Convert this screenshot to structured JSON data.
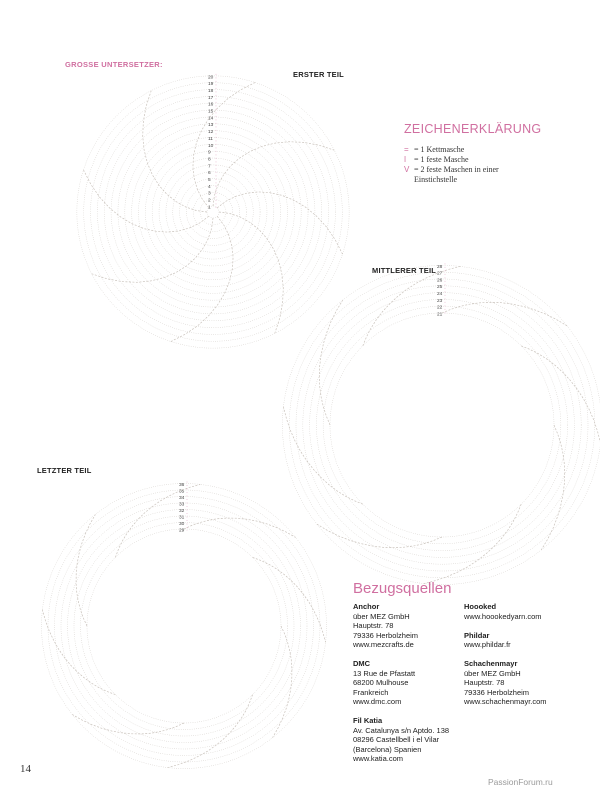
{
  "page_title": "GROSSE UNTERSETZER:",
  "parts": [
    {
      "title": "ERSTER TEIL",
      "rows": [
        "1",
        "2",
        "3",
        "4",
        "5",
        "6",
        "7",
        "8",
        "9",
        "10",
        "11",
        "12",
        "13",
        "14",
        "15",
        "16",
        "17",
        "18",
        "19",
        "20"
      ]
    },
    {
      "title": "MITTLERER TEIL",
      "rows": [
        "21",
        "22",
        "23",
        "24",
        "25",
        "26",
        "27",
        "28"
      ]
    },
    {
      "title": "LETZTER TEIL",
      "rows": [
        "29",
        "30",
        "31",
        "32",
        "33",
        "34",
        "35",
        "36"
      ]
    }
  ],
  "legend": {
    "title": "ZEICHENERKLÄRUNG",
    "items": [
      {
        "symbol": "=",
        "text": "= 1 Kettmasche"
      },
      {
        "symbol": "ǀ",
        "text": "= 1 feste Masche"
      },
      {
        "symbol": "V",
        "text": "= 2 feste Maschen in einer Einstichstelle"
      }
    ]
  },
  "sources": {
    "title": "Bezugsquellen",
    "left": [
      {
        "name": "Anchor",
        "lines": [
          "über MEZ GmbH",
          "Hauptstr. 78",
          "79336 Herbolzheim",
          "www.mezcrafts.de"
        ]
      },
      {
        "name": "DMC",
        "lines": [
          "13 Rue de Pfastatt",
          "68200 Mulhouse",
          "Frankreich",
          "www.dmc.com"
        ]
      },
      {
        "name": "Fil Katia",
        "lines": [
          "Av. Catalunya s/n Aptdo. 138",
          "08296 Castellbell i el Vilar",
          "(Barcelona) Spanien",
          "www.katia.com"
        ]
      }
    ],
    "right": [
      {
        "name": "Hoooked",
        "lines": [
          "www.hoookedyarn.com"
        ]
      },
      {
        "name": "Phildar",
        "lines": [
          "www.phildar.fr"
        ]
      },
      {
        "name": "Schachenmayr",
        "lines": [
          "über MEZ GmbH",
          "Hauptstr. 78",
          "79336 Herbolzheim",
          "www.schachenmayr.com"
        ]
      }
    ]
  },
  "page_number": "14",
  "watermark": "PassionForum.ru",
  "colors": {
    "accent": "#d06fa0",
    "chart_line": "#b8b0a8"
  }
}
